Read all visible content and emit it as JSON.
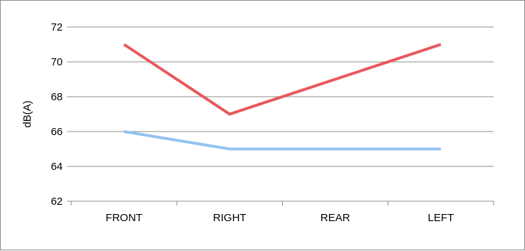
{
  "chart_data": {
    "type": "line",
    "categories": [
      "FRONT",
      "RIGHT",
      "REAR",
      "LEFT"
    ],
    "series": [
      {
        "values": [
          71,
          67,
          69,
          71
        ],
        "color": "#e8585e"
      },
      {
        "values": [
          66,
          65,
          65,
          65
        ],
        "color": "#93c3f2"
      }
    ],
    "ylabel": "dB(A)",
    "xlabel": "",
    "title": "",
    "ylim": [
      62,
      72
    ],
    "yticks": [
      62,
      64,
      66,
      68,
      70,
      72
    ],
    "grid": true,
    "legend": "none"
  }
}
